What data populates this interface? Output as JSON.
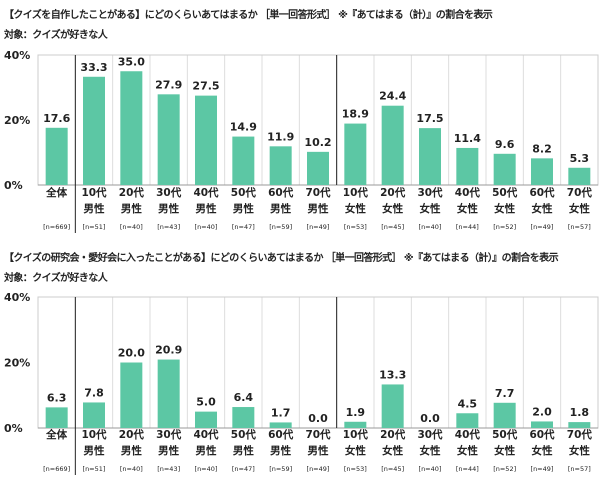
{
  "chart_data": [
    {
      "type": "bar",
      "title": "【クイズを自作したことがある】にどのくらいあてはまるか ［単一回答形式］ ※『あてはまる（計）』の割合を表示",
      "subtitle": "対象：クイズが好きな人",
      "categories": [
        [
          "全体",
          ""
        ],
        [
          "10代",
          "男性"
        ],
        [
          "20代",
          "男性"
        ],
        [
          "30代",
          "男性"
        ],
        [
          "40代",
          "男性"
        ],
        [
          "50代",
          "男性"
        ],
        [
          "60代",
          "男性"
        ],
        [
          "70代",
          "男性"
        ],
        [
          "10代",
          "女性"
        ],
        [
          "20代",
          "女性"
        ],
        [
          "30代",
          "女性"
        ],
        [
          "40代",
          "女性"
        ],
        [
          "50代",
          "女性"
        ],
        [
          "60代",
          "女性"
        ],
        [
          "70代",
          "女性"
        ]
      ],
      "n": [
        "[n=669]",
        "[n=51]",
        "[n=40]",
        "[n=43]",
        "[n=40]",
        "[n=47]",
        "[n=59]",
        "[n=49]",
        "[n=53]",
        "[n=45]",
        "[n=40]",
        "[n=44]",
        "[n=52]",
        "[n=49]",
        "[n=57]"
      ],
      "values": [
        17.6,
        33.3,
        35.0,
        27.9,
        27.5,
        14.9,
        11.9,
        10.2,
        18.9,
        24.4,
        17.5,
        11.4,
        9.6,
        8.2,
        5.3
      ],
      "ylim": [
        0,
        40
      ],
      "yticks": [
        "0%",
        "20%",
        "40%"
      ],
      "grid": "vertical",
      "color": "#5cc7a4"
    },
    {
      "type": "bar",
      "title": "【クイズの研究会・愛好会に入ったことがある】にどのくらいあてはまるか ［単一回答形式］ ※『あてはまる（計）』の割合を表示",
      "subtitle": "対象：クイズが好きな人",
      "categories": [
        [
          "全体",
          ""
        ],
        [
          "10代",
          "男性"
        ],
        [
          "20代",
          "男性"
        ],
        [
          "30代",
          "男性"
        ],
        [
          "40代",
          "男性"
        ],
        [
          "50代",
          "男性"
        ],
        [
          "60代",
          "男性"
        ],
        [
          "70代",
          "男性"
        ],
        [
          "10代",
          "女性"
        ],
        [
          "20代",
          "女性"
        ],
        [
          "30代",
          "女性"
        ],
        [
          "40代",
          "女性"
        ],
        [
          "50代",
          "女性"
        ],
        [
          "60代",
          "女性"
        ],
        [
          "70代",
          "女性"
        ]
      ],
      "n": [
        "[n=669]",
        "[n=51]",
        "[n=40]",
        "[n=43]",
        "[n=40]",
        "[n=47]",
        "[n=59]",
        "[n=49]",
        "[n=53]",
        "[n=45]",
        "[n=40]",
        "[n=44]",
        "[n=52]",
        "[n=49]",
        "[n=57]"
      ],
      "values": [
        6.3,
        7.8,
        20.0,
        20.9,
        5.0,
        6.4,
        1.7,
        0.0,
        1.9,
        13.3,
        0.0,
        4.5,
        7.7,
        2.0,
        1.8
      ],
      "ylim": [
        0,
        40
      ],
      "yticks": [
        "0%",
        "20%",
        "40%"
      ],
      "grid": "vertical",
      "color": "#5cc7a4"
    }
  ]
}
